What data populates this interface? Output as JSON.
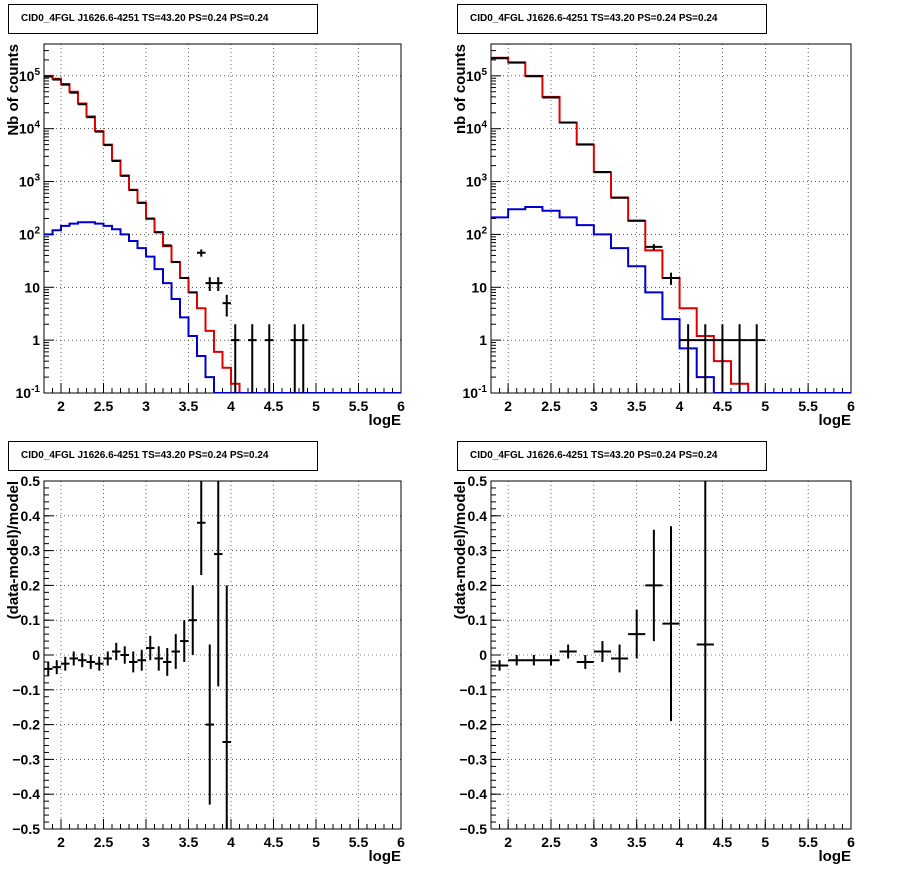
{
  "panel_title": "CID0_4FGL J1626.6-4251 TS=43.20 PS=0.24 PS=0.24",
  "chart_data": [
    {
      "type": "line",
      "title": "CID0_4FGL J1626.6-4251 TS=43.20 PS=0.24 PS=0.24",
      "xlabel": "logE",
      "ylabel": "Nb of counts",
      "log_y": true,
      "xlim": [
        1.8,
        6.0
      ],
      "ylim": [
        0.1,
        400000
      ],
      "xticks": [
        "2",
        "2.5",
        "3",
        "3.5",
        "4",
        "4.5",
        "5",
        "5.5",
        "6"
      ],
      "yticks": [
        "10^{-1}",
        "1",
        "10",
        "10^{2}",
        "10^{3}",
        "10^{4}",
        "10^{5}"
      ],
      "grid": true,
      "bin_edges": [
        1.8,
        1.9,
        2.0,
        2.1,
        2.2,
        2.3,
        2.4,
        2.5,
        2.6,
        2.7,
        2.8,
        2.9,
        3.0,
        3.1,
        3.2,
        3.3,
        3.4,
        3.5,
        3.6,
        3.7,
        3.8,
        3.9,
        4.0,
        4.1,
        4.2,
        4.3,
        4.4,
        4.5,
        4.6,
        4.7,
        4.8,
        4.9,
        5.0,
        5.1,
        5.2,
        5.3,
        5.4,
        5.5,
        5.6,
        5.7,
        5.8,
        5.9,
        6.0
      ],
      "series": [
        {
          "color": "#e00000",
          "kind": "step",
          "values": [
            100000,
            88000,
            70000,
            50000,
            30000,
            17000,
            9000,
            5000,
            2500,
            1300,
            700,
            400,
            200,
            110,
            60,
            30,
            15,
            8,
            4,
            1.5,
            0.6,
            0.3,
            0.15,
            0.1,
            0.1,
            0.1,
            0.1,
            0.1,
            0.1,
            0.1,
            0.1,
            0.1,
            0.1,
            0.1,
            0.1,
            0.1,
            0.1,
            0.1,
            0.1,
            0.1,
            0.1,
            0.1
          ]
        },
        {
          "color": "#0000cc",
          "kind": "step",
          "values": [
            100,
            120,
            145,
            160,
            170,
            170,
            160,
            145,
            125,
            100,
            75,
            55,
            38,
            22,
            12,
            6,
            2.7,
            1.2,
            0.5,
            0.2,
            0.1,
            0.1,
            0.1,
            0.1,
            0.1,
            0.1,
            0.1,
            0.1,
            0.1,
            0.1,
            0.1,
            0.1,
            0.1,
            0.1,
            0.1,
            0.1,
            0.1,
            0.1,
            0.1,
            0.1,
            0.1,
            0.1
          ]
        },
        {
          "color": "#000000",
          "kind": "points",
          "x": [
            1.85,
            1.95,
            2.05,
            2.15,
            2.25,
            2.35,
            2.45,
            2.55,
            2.65,
            2.75,
            2.85,
            2.95,
            3.05,
            3.15,
            3.25,
            3.35,
            3.45,
            3.55,
            3.65,
            3.75,
            3.85,
            3.95,
            4.05,
            4.25,
            4.45,
            4.75,
            4.85
          ],
          "y": [
            97000,
            85000,
            68000,
            48000,
            29000,
            16500,
            8800,
            4900,
            2450,
            1280,
            690,
            395,
            198,
            110,
            62,
            30,
            15,
            8,
            45,
            12,
            12,
            5,
            1,
            1,
            1,
            1,
            1
          ],
          "yerr_lo": [
            0,
            0,
            0,
            0,
            0,
            0,
            0,
            0,
            0,
            0,
            0,
            0,
            0,
            0,
            0,
            0,
            0,
            0,
            7,
            3.5,
            3.5,
            2.2,
            0.9,
            0.9,
            0.9,
            0.9,
            0.9
          ],
          "yerr_hi": [
            0,
            0,
            0,
            0,
            0,
            0,
            0,
            0,
            0,
            0,
            0,
            0,
            0,
            0,
            0,
            0,
            0,
            0,
            7,
            3.5,
            3.5,
            2.2,
            1.0,
            1.0,
            1.0,
            1.0,
            1.0
          ]
        }
      ]
    },
    {
      "type": "line",
      "title": "CID0_4FGL J1626.6-4251 TS=43.20 PS=0.24 PS=0.24",
      "xlabel": "logE",
      "ylabel": "nb of counts",
      "log_y": true,
      "xlim": [
        1.8,
        6.0
      ],
      "ylim": [
        0.1,
        400000
      ],
      "xticks": [
        "2",
        "2.5",
        "3",
        "3.5",
        "4",
        "4.5",
        "5",
        "5.5",
        "6"
      ],
      "yticks": [
        "10^{-1}",
        "1",
        "10",
        "10^{2}",
        "10^{3}",
        "10^{4}",
        "10^{5}"
      ],
      "grid": true,
      "bin_edges": [
        1.8,
        2.0,
        2.2,
        2.4,
        2.6,
        2.8,
        3.0,
        3.2,
        3.4,
        3.6,
        3.8,
        4.0,
        4.2,
        4.4,
        4.6,
        4.8,
        5.0,
        5.2,
        5.4,
        5.6,
        5.8,
        6.0
      ],
      "series": [
        {
          "color": "#e00000",
          "kind": "step",
          "values": [
            220000,
            180000,
            100000,
            40000,
            13000,
            5000,
            1500,
            500,
            180,
            50,
            15,
            4,
            1.2,
            0.4,
            0.15,
            0.1,
            0.1,
            0.1,
            0.1,
            0.1,
            0.1
          ]
        },
        {
          "color": "#0000cc",
          "kind": "step",
          "values": [
            210,
            300,
            330,
            280,
            210,
            150,
            100,
            55,
            25,
            8,
            2.5,
            0.7,
            0.2,
            0.1,
            0.1,
            0.1,
            0.1,
            0.1,
            0.1,
            0.1,
            0.1
          ]
        },
        {
          "color": "#000000",
          "kind": "points",
          "x": [
            1.9,
            2.1,
            2.3,
            2.5,
            2.7,
            2.9,
            3.1,
            3.3,
            3.5,
            3.7,
            3.9,
            4.1,
            4.3,
            4.5,
            4.7,
            4.9
          ],
          "y": [
            215000,
            178000,
            98000,
            39000,
            13100,
            5050,
            1520,
            495,
            182,
            58,
            15,
            1,
            1,
            1,
            1,
            1
          ],
          "yerr_lo": [
            0,
            0,
            0,
            0,
            0,
            0,
            0,
            0,
            0,
            7.6,
            3.9,
            0.9,
            0.9,
            0.9,
            0.9,
            0.9
          ],
          "yerr_hi": [
            0,
            0,
            0,
            0,
            0,
            0,
            0,
            0,
            0,
            7.6,
            3.9,
            1.0,
            1.0,
            1.0,
            1.0,
            1.0
          ]
        }
      ]
    },
    {
      "type": "scatter",
      "title": "CID0_4FGL J1626.6-4251 TS=43.20 PS=0.24 PS=0.24",
      "xlabel": "logE",
      "ylabel": "(data-model)/model",
      "xlim": [
        1.8,
        6.0
      ],
      "ylim": [
        -0.5,
        0.5
      ],
      "xticks": [
        "2",
        "2.5",
        "3",
        "3.5",
        "4",
        "4.5",
        "5",
        "5.5",
        "6"
      ],
      "yticks": [
        "−0.5",
        "−0.4",
        "−0.3",
        "−0.2",
        "−0.1",
        "0",
        "0.1",
        "0.2",
        "0.3",
        "0.4",
        "0.5"
      ],
      "grid": true,
      "points": {
        "x": [
          1.85,
          1.95,
          2.05,
          2.15,
          2.25,
          2.35,
          2.45,
          2.55,
          2.65,
          2.75,
          2.85,
          2.95,
          3.05,
          3.15,
          3.25,
          3.35,
          3.45,
          3.55,
          3.65,
          3.75,
          3.85,
          3.95
        ],
        "y": [
          -0.04,
          -0.035,
          -0.025,
          -0.01,
          -0.015,
          -0.02,
          -0.025,
          -0.01,
          0.01,
          0.0,
          -0.02,
          -0.015,
          0.02,
          -0.01,
          -0.02,
          0.01,
          0.04,
          0.1,
          0.38,
          -0.2,
          0.29,
          -0.25
        ],
        "err": [
          0.02,
          0.02,
          0.02,
          0.02,
          0.02,
          0.02,
          0.02,
          0.02,
          0.025,
          0.025,
          0.03,
          0.03,
          0.035,
          0.035,
          0.04,
          0.05,
          0.06,
          0.1,
          0.15,
          0.23,
          0.38,
          0.45
        ],
        "xerr": 0.05
      }
    },
    {
      "type": "scatter",
      "title": "CID0_4FGL J1626.6-4251 TS=43.20 PS=0.24 PS=0.24",
      "xlabel": "logE",
      "ylabel": "(data-model)/model",
      "xlim": [
        1.8,
        6.0
      ],
      "ylim": [
        -0.5,
        0.5
      ],
      "xticks": [
        "2",
        "2.5",
        "3",
        "3.5",
        "4",
        "4.5",
        "5",
        "5.5",
        "6"
      ],
      "yticks": [
        "−0.5",
        "−0.4",
        "−0.3",
        "−0.2",
        "−0.1",
        "0",
        "0.1",
        "0.2",
        "0.3",
        "0.4",
        "0.5"
      ],
      "grid": true,
      "points": {
        "x": [
          1.9,
          2.1,
          2.3,
          2.5,
          2.7,
          2.9,
          3.1,
          3.3,
          3.5,
          3.7,
          3.9,
          4.3
        ],
        "y": [
          -0.03,
          -0.015,
          -0.015,
          -0.015,
          0.01,
          -0.02,
          0.01,
          -0.01,
          0.06,
          0.2,
          0.09,
          0.03
        ],
        "err": [
          0.015,
          0.015,
          0.015,
          0.015,
          0.02,
          0.02,
          0.03,
          0.04,
          0.07,
          0.16,
          0.28,
          0.6
        ],
        "xerr": 0.1
      }
    }
  ]
}
